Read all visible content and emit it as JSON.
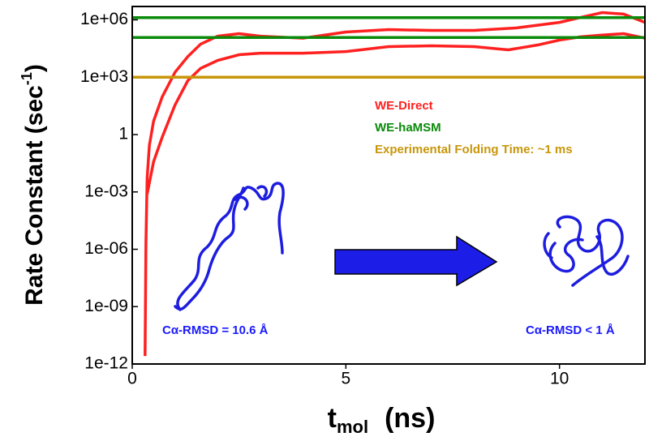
{
  "chart_data": {
    "type": "line",
    "y_label": {
      "text": "Rate Constant  (sec",
      "sup": "-1",
      "end": ")"
    },
    "x_label": {
      "text": "t",
      "sub": "mol",
      "end": "(ns)"
    },
    "log_y": true,
    "xlim": [
      0,
      12
    ],
    "xticks": [
      0,
      5,
      10
    ],
    "ylim": [
      1e-12,
      5000000
    ],
    "yticks": [
      {
        "value": 1e-12,
        "label": "1e-12"
      },
      {
        "value": 1e-09,
        "label": "1e-09"
      },
      {
        "value": 1e-06,
        "label": "1e-06"
      },
      {
        "value": 0.001,
        "label": "1e-03"
      },
      1,
      {
        "value": 1000,
        "label": "1e+03"
      },
      {
        "value": 1000000,
        "label": "1e+06"
      }
    ],
    "series": [
      {
        "name": "WE-Direct",
        "color": "#ff2020",
        "x": [
          0.3,
          0.32,
          0.35,
          0.4,
          0.5,
          0.7,
          1.0,
          1.3,
          1.6,
          2.0,
          2.5,
          3.0,
          4.0,
          5.0,
          6.0,
          7.0,
          8.0,
          9.0,
          10.0,
          10.5,
          11.0,
          11.5,
          12.0
        ],
        "values": [
          2.6e-12,
          2.2e-06,
          0.0055,
          0.27,
          5,
          93,
          1800,
          12000,
          54000,
          140000,
          190000,
          140000,
          110000,
          230000,
          310000,
          280000,
          280000,
          380000,
          740000,
          1350000,
          2400000,
          2000000,
          740000
        ]
      },
      {
        "color": "#ff2020",
        "x": [
          0.35,
          0.5,
          0.7,
          1.0,
          1.3,
          1.6,
          2.0,
          2.5,
          3.0,
          4.0,
          5.0,
          6.0,
          7.0,
          8.0,
          8.8,
          9.5,
          10.0,
          10.5,
          11.0,
          11.5,
          12.0
        ],
        "values": [
          0.00078,
          0.038,
          0.72,
          35,
          660,
          2900,
          7600,
          15000,
          18000,
          18000,
          22000,
          40000,
          44000,
          40000,
          27000,
          49000,
          88000,
          130000,
          160000,
          190000,
          110000
        ]
      },
      {
        "name": "WE-haMSM",
        "color": "#0a8a0a",
        "x": [
          0,
          12
        ],
        "values": [
          1300000,
          1300000
        ]
      },
      {
        "color": "#0a8a0a",
        "x": [
          0,
          12
        ],
        "values": [
          120000,
          120000
        ]
      },
      {
        "name": "Experimental Folding Time:  ~1 ms",
        "color": "#c8960a",
        "x": [
          0,
          12
        ],
        "values": [
          1000,
          1000
        ]
      }
    ],
    "annotations": [
      "Cα-RMSD = 10.6 Å",
      "Cα-RMSD < 1 Å"
    ]
  }
}
